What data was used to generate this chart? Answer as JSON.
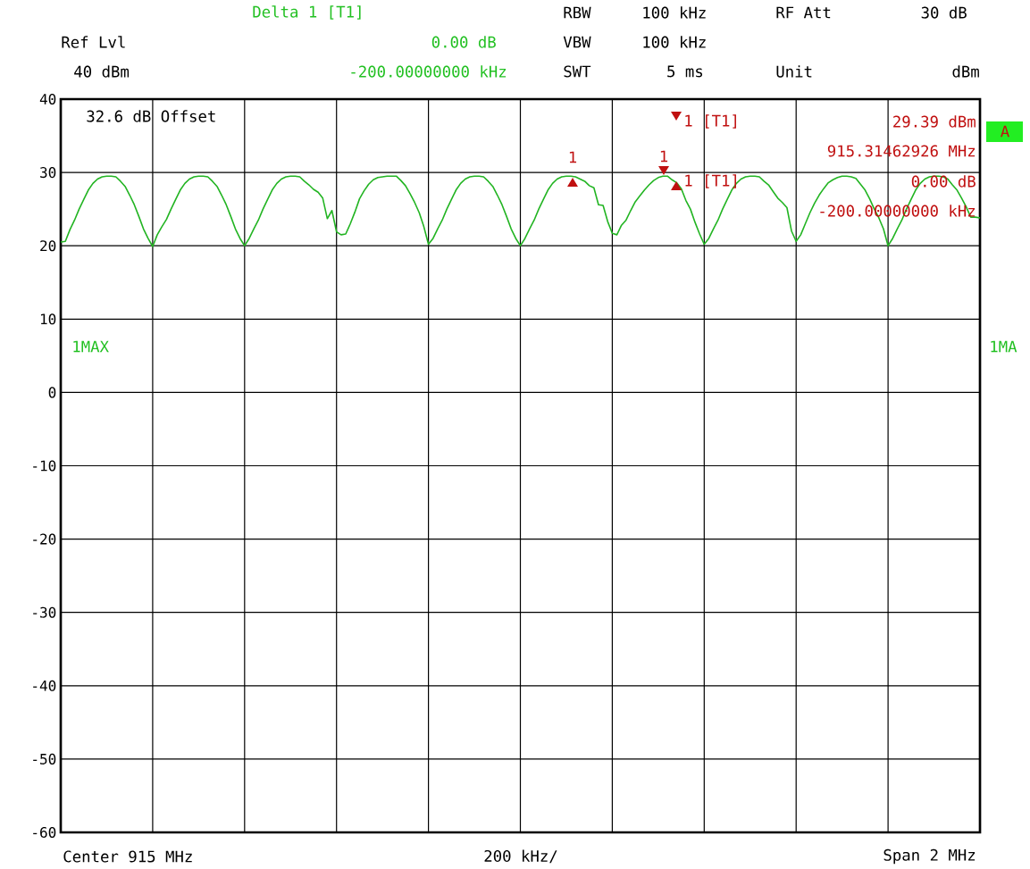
{
  "chart_data": {
    "type": "line",
    "categories": [
      null,
      null,
      null,
      null,
      null,
      null,
      null,
      null,
      null,
      null,
      null,
      null,
      null,
      null,
      null,
      null,
      null,
      null,
      null,
      null,
      null,
      null,
      null,
      null,
      null,
      null,
      null,
      null,
      null,
      null,
      null,
      null,
      null,
      null,
      null,
      null,
      null,
      null,
      null,
      null,
      null,
      null,
      null,
      null,
      null,
      null,
      null,
      null,
      null,
      null,
      null,
      null,
      null,
      null,
      null,
      null,
      null,
      null,
      null,
      null,
      null,
      null,
      null,
      null,
      null,
      null,
      null,
      null,
      null,
      null,
      null,
      null,
      null,
      null,
      null,
      null,
      null,
      null,
      null,
      null,
      null,
      null,
      null,
      null,
      null,
      null,
      null,
      null,
      null,
      null,
      null,
      null,
      null,
      null,
      null,
      null,
      null,
      null,
      null,
      null,
      null,
      null,
      null,
      null,
      null,
      null,
      null,
      null,
      null,
      null,
      null,
      null,
      null,
      null,
      null,
      null,
      null,
      null,
      null,
      null,
      null,
      null,
      null,
      null,
      null,
      null,
      null,
      null,
      null,
      null,
      null,
      null,
      null,
      null,
      null,
      null,
      null,
      null,
      null,
      null,
      null,
      null,
      null,
      null,
      null,
      null,
      null,
      null,
      null,
      null,
      null,
      null,
      null,
      null,
      null,
      null,
      null,
      null,
      null,
      null,
      null,
      null,
      null,
      null,
      null,
      null,
      null,
      null,
      null,
      null,
      null,
      null,
      null,
      null,
      null,
      null,
      null,
      null,
      null,
      null,
      null,
      null,
      null,
      null,
      null,
      null,
      null,
      null,
      null,
      null,
      null,
      null,
      null,
      null,
      null,
      null,
      null,
      null,
      null,
      null,
      null
    ],
    "series": [
      {
        "color": "#22b422",
        "values": [
          20.5,
          20.6,
          22.2,
          23.5,
          25,
          26.3,
          27.6,
          28.5,
          29.1,
          29.4,
          29.5,
          29.5,
          29.4,
          28.8,
          28.1,
          26.9,
          25.6,
          24.0,
          22.3,
          21.0,
          19.9,
          21.5,
          22.6,
          23.6,
          25,
          26.3,
          27.6,
          28.5,
          29.1,
          29.4,
          29.5,
          29.5,
          29.4,
          28.8,
          28.1,
          26.9,
          25.6,
          24.0,
          22.3,
          21.0,
          20,
          21,
          22.3,
          23.5,
          25,
          26.3,
          27.6,
          28.5,
          29.1,
          29.4,
          29.5,
          29.5,
          29.4,
          28.8,
          28.3,
          27.7,
          27.3,
          26.5,
          23.7,
          24.8,
          21.9,
          21.5,
          21.6,
          23.0,
          24.6,
          26.4,
          27.5,
          28.4,
          29.0,
          29.3,
          29.4,
          29.5,
          29.5,
          29.5,
          28.9,
          28.2,
          27.1,
          25.9,
          24.5,
          22.6,
          20.2,
          21,
          22.3,
          23.5,
          25,
          26.3,
          27.6,
          28.5,
          29.1,
          29.4,
          29.5,
          29.5,
          29.4,
          28.8,
          28.1,
          26.9,
          25.6,
          24.0,
          22.3,
          21.0,
          20,
          21,
          22.3,
          23.5,
          25,
          26.3,
          27.6,
          28.5,
          29.1,
          29.4,
          29.5,
          29.5,
          29.4,
          29.1,
          28.8,
          28.2,
          27.9,
          25.6,
          25.5,
          23.3,
          21.7,
          21.5,
          22.8,
          23.5,
          24.8,
          26.0,
          26.8,
          27.6,
          28.3,
          28.9,
          29.3,
          29.5,
          29.5,
          29.0,
          28.6,
          27.8,
          26.2,
          25.0,
          23.2,
          21.6,
          20.2,
          21,
          22.3,
          23.5,
          25,
          26.3,
          27.6,
          28.5,
          29.1,
          29.4,
          29.5,
          29.5,
          29.4,
          28.8,
          28.3,
          27.4,
          26.5,
          25.9,
          25.2,
          22.0,
          20.6,
          21.5,
          23.0,
          24.5,
          25.8,
          26.9,
          27.8,
          28.6,
          29.0,
          29.3,
          29.5,
          29.5,
          29.4,
          29.2,
          28.4,
          27.6,
          26.4,
          25.0,
          23.8,
          22.3,
          20.0,
          21,
          22.3,
          23.5,
          25,
          26.3,
          27.6,
          28.5,
          29.1,
          29.4,
          29.5,
          29.5,
          29.4,
          29.1,
          28.3,
          27.6,
          26.5,
          25.3,
          23.9,
          23.9,
          23.8
        ]
      }
    ],
    "ylim": [
      -60,
      40
    ],
    "yticks": [
      -60,
      -50,
      -40,
      -30,
      -20,
      -10,
      0,
      10,
      20,
      30,
      40
    ],
    "grid": true,
    "marker": "none",
    "line_style": "solid",
    "annotations": [
      "Delta 1 [T1]",
      "Ref Lvl",
      "0.00 dB",
      "40 dBm",
      "-200.00000000 kHz",
      "RBW",
      "100 kHz",
      "RF Att",
      "30 dB",
      "VBW",
      "100 kHz",
      "SWT",
      "5 ms",
      "Unit",
      "dBm",
      "32.6 dB Offset",
      "1 [T1]",
      "29.39 dBm",
      "915.31462926 MHz",
      "1 [T1]",
      "0.00 dB",
      "-200.00000000 kHz",
      "1MAX",
      "1MA",
      "A",
      "Center 915 MHz",
      "200 kHz/",
      "Span 2 MHz",
      "1",
      "1"
    ]
  }
}
